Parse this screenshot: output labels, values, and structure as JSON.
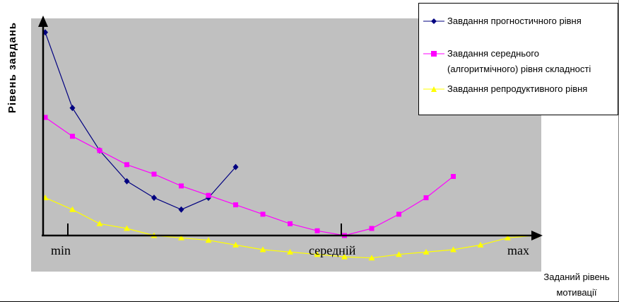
{
  "chart_data": {
    "type": "line",
    "xlabel": "Заданий рівень мотивації",
    "xlabel_lines": [
      "Заданий рівень",
      "мотивації"
    ],
    "ylabel": "Рівень завдань",
    "x_tick_labels": [
      "min",
      "середній",
      "max"
    ],
    "x": [
      1,
      2,
      3,
      4,
      5,
      6,
      7,
      8,
      9,
      10,
      11,
      12,
      13,
      14,
      15,
      16,
      17,
      18,
      19
    ],
    "ylim": [
      -2.5,
      10
    ],
    "grid": false,
    "legend_position": "top-right",
    "plot_background": "#c0c0c0",
    "series": [
      {
        "name": "Завдання прогностичного рівня",
        "color": "#000080",
        "marker": "diamond",
        "x": [
          1,
          2,
          3,
          4,
          5,
          6,
          7,
          8
        ],
        "values": [
          8.6,
          5.4,
          3.6,
          2.3,
          1.6,
          1.1,
          1.6,
          2.9
        ]
      },
      {
        "name": "Завдання середнього (алгоритмічного) рівня складності",
        "name_lines": [
          "Завдання середнього",
          "(алгоритмічного) рівня складності"
        ],
        "color": "#ff00ff",
        "marker": "square",
        "x": [
          1,
          2,
          3,
          4,
          5,
          6,
          7,
          8,
          9,
          10,
          11,
          12,
          13,
          14,
          15,
          16
        ],
        "values": [
          5.0,
          4.2,
          3.6,
          3.0,
          2.6,
          2.1,
          1.7,
          1.3,
          0.9,
          0.5,
          0.2,
          0.0,
          0.3,
          0.9,
          1.6,
          2.5
        ]
      },
      {
        "name": "Завдання репродуктивного рівня",
        "color": "#ffff00",
        "marker": "triangle",
        "x": [
          1,
          2,
          3,
          4,
          5,
          6,
          7,
          8,
          9,
          10,
          11,
          12,
          13,
          14,
          15,
          16,
          17,
          18,
          19
        ],
        "values": [
          1.6,
          1.1,
          0.5,
          0.3,
          0.0,
          -0.1,
          -0.2,
          -0.4,
          -0.6,
          -0.7,
          -0.8,
          -0.9,
          -0.95,
          -0.8,
          -0.7,
          -0.6,
          -0.4,
          -0.1,
          0.0
        ]
      }
    ]
  }
}
